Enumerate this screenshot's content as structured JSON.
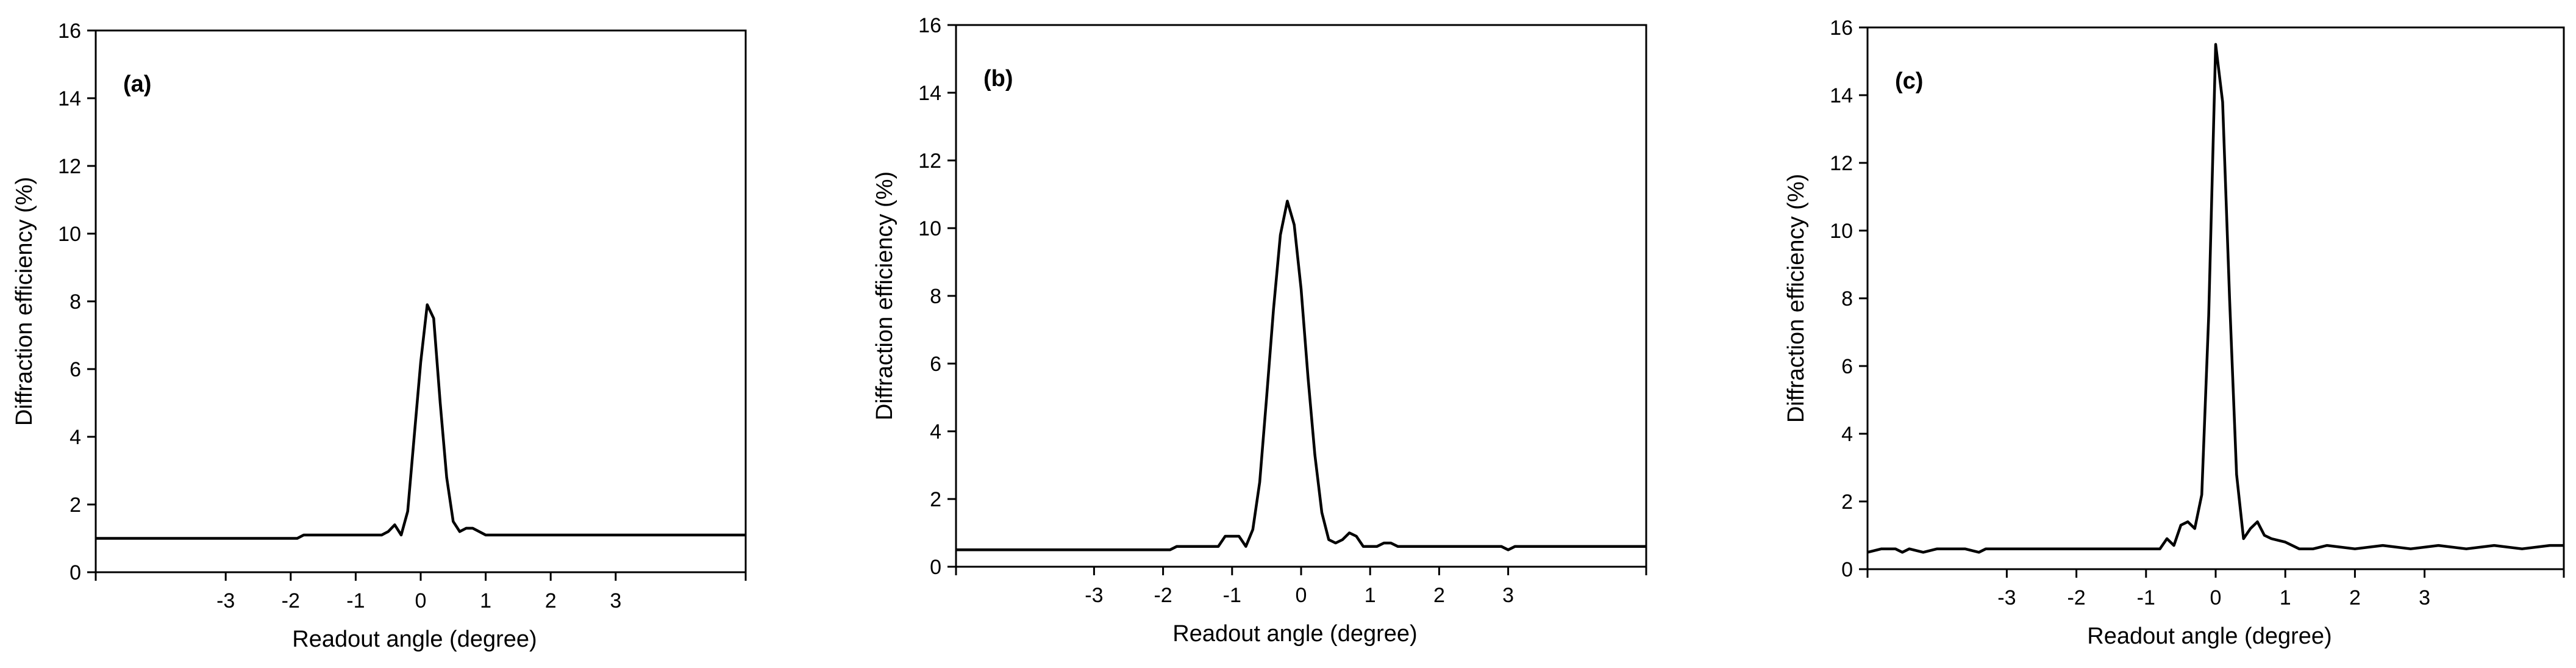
{
  "chart_data": [
    {
      "type": "line",
      "panel_label": "(a)",
      "xlabel": "Readout angle (degree)",
      "ylabel": "Diffraction efficiency (%)",
      "xlim": [
        -5,
        5
      ],
      "ylim": [
        0,
        16
      ],
      "xticks": [
        -3,
        -2,
        -1,
        0,
        1,
        2,
        3
      ],
      "yticks": [
        0,
        2,
        4,
        6,
        8,
        10,
        12,
        14,
        16
      ],
      "grid": false,
      "series": [
        {
          "x": [
            -5,
            -1.9,
            -1.8,
            -0.6,
            -0.5,
            -0.4,
            -0.3,
            -0.2,
            -0.1,
            0.0,
            0.1,
            0.2,
            0.3,
            0.4,
            0.5,
            0.6,
            0.7,
            0.8,
            0.9,
            1.0,
            5
          ],
          "y": [
            1.0,
            1.0,
            1.1,
            1.1,
            1.2,
            1.4,
            1.1,
            1.8,
            4.0,
            6.2,
            7.9,
            7.5,
            5.0,
            2.8,
            1.5,
            1.2,
            1.3,
            1.3,
            1.2,
            1.1,
            1.1
          ]
        }
      ]
    },
    {
      "type": "line",
      "panel_label": "(b)",
      "xlabel": "Readout angle (degree)",
      "ylabel": "Diffraction efficiency (%)",
      "xlim": [
        -5,
        5
      ],
      "ylim": [
        0,
        16
      ],
      "xticks": [
        -3,
        -2,
        -1,
        0,
        1,
        2,
        3
      ],
      "yticks": [
        0,
        2,
        4,
        6,
        8,
        10,
        12,
        14,
        16
      ],
      "grid": false,
      "series": [
        {
          "x": [
            -5,
            -1.9,
            -1.8,
            -1.2,
            -1.1,
            -0.9,
            -0.8,
            -0.7,
            -0.6,
            -0.5,
            -0.4,
            -0.3,
            -0.2,
            -0.1,
            0.0,
            0.1,
            0.2,
            0.3,
            0.4,
            0.5,
            0.6,
            0.7,
            0.8,
            0.9,
            1.0,
            1.1,
            1.2,
            1.3,
            1.4,
            1.5,
            1.6,
            2.9,
            3.0,
            3.1,
            5
          ],
          "y": [
            0.5,
            0.5,
            0.6,
            0.6,
            0.9,
            0.9,
            0.6,
            1.1,
            2.5,
            5.0,
            7.6,
            9.8,
            10.8,
            10.1,
            8.2,
            5.6,
            3.3,
            1.6,
            0.8,
            0.7,
            0.8,
            1.0,
            0.9,
            0.6,
            0.6,
            0.6,
            0.7,
            0.7,
            0.6,
            0.6,
            0.6,
            0.6,
            0.5,
            0.6,
            0.6
          ]
        }
      ]
    },
    {
      "type": "line",
      "panel_label": "(c)",
      "xlabel": "Readout angle (degree)",
      "ylabel": "Diffraction efficiency (%)",
      "xlim": [
        -5,
        5
      ],
      "ylim": [
        0,
        16
      ],
      "xticks": [
        -3,
        -2,
        -1,
        0,
        1,
        2,
        3
      ],
      "yticks": [
        0,
        2,
        4,
        6,
        8,
        10,
        12,
        14,
        16
      ],
      "grid": false,
      "series": [
        {
          "x": [
            -5,
            -4.8,
            -4.6,
            -4.5,
            -4.4,
            -4.2,
            -4.0,
            -3.8,
            -3.6,
            -3.4,
            -3.3,
            -3.2,
            -1.0,
            -0.8,
            -0.7,
            -0.6,
            -0.5,
            -0.4,
            -0.3,
            -0.2,
            -0.1,
            0.0,
            0.1,
            0.2,
            0.3,
            0.4,
            0.5,
            0.6,
            0.7,
            0.8,
            1.0,
            1.2,
            1.4,
            1.6,
            2.0,
            2.4,
            2.8,
            3.2,
            3.6,
            4.0,
            4.4,
            4.8,
            5
          ],
          "y": [
            0.5,
            0.6,
            0.6,
            0.5,
            0.6,
            0.5,
            0.6,
            0.6,
            0.6,
            0.5,
            0.6,
            0.6,
            0.6,
            0.6,
            0.9,
            0.7,
            1.3,
            1.4,
            1.2,
            2.2,
            7.5,
            15.5,
            13.8,
            8.0,
            2.8,
            0.9,
            1.2,
            1.4,
            1.0,
            0.9,
            0.8,
            0.6,
            0.6,
            0.7,
            0.6,
            0.7,
            0.6,
            0.7,
            0.6,
            0.7,
            0.6,
            0.7,
            0.7
          ]
        }
      ]
    }
  ]
}
